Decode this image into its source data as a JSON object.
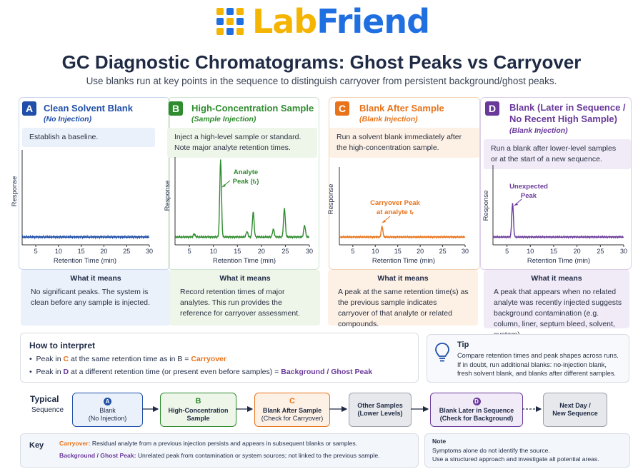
{
  "logo": {
    "lab": "Lab",
    "friend": "Friend"
  },
  "title": "GC Diagnostic Chromatograms: Ghost Peaks vs Carryover",
  "subtitle": "Use blanks run at key points in the sequence to distinguish carryover from persistent background/ghost peaks.",
  "colors": {
    "blue": "#1f4fa8",
    "green": "#2e8b2e",
    "orange": "#e8731a",
    "purple": "#6a3a9a",
    "navy": "#1f2a44"
  },
  "panels": [
    {
      "letter": "A",
      "title": "Clean Solvent Blank",
      "subtitle": "(No Injection)",
      "note": "Establish a baseline.",
      "annotation": "",
      "ylabel": "Response",
      "xlabel": "Retention Time (min)",
      "ticks": [
        "5",
        "10",
        "15",
        "20",
        "25",
        "30"
      ],
      "meaning_title": "What it means",
      "meaning": "No significant peaks. The system is clean before any sample is injected."
    },
    {
      "letter": "B",
      "title": "High-Concentration Sample",
      "subtitle": "(Sample Injection)",
      "note": "Inject a high-level sample or standard. Note major analyte retention times.",
      "annotation_line1": "Analyte",
      "annotation_line2": "Peak (tᵣ)",
      "ylabel": "Response",
      "xlabel": "Retention Time (min)",
      "ticks": [
        "5",
        "10",
        "15",
        "20",
        "25",
        "30"
      ],
      "meaning_title": "What it means",
      "meaning": "Record retention times of major analytes. This run provides the reference for carryover assessment."
    },
    {
      "letter": "C",
      "title": "Blank After Sample",
      "subtitle": "(Blank Injection)",
      "note": "Run a solvent blank immediately after the high-concentration sample.",
      "annotation_line1": "Carryover Peak",
      "annotation_line2": "at analyte tᵣ",
      "ylabel": "Response",
      "xlabel": "Retention Time (min)",
      "ticks": [
        "5",
        "10",
        "15",
        "20",
        "25",
        "30"
      ],
      "meaning_title": "What it means",
      "meaning": "A peak at the same retention time(s) as the previous sample indicates carryover of that analyte or related compounds."
    },
    {
      "letter": "D",
      "title_line1": "Blank (Later in Sequence /",
      "title_line2": "No Recent High Sample)",
      "subtitle": "(Blank Injection)",
      "note": "Run a blank after lower-level samples or at the start of a new sequence.",
      "annotation_line1": "Unexpected",
      "annotation_line2": "Peak",
      "ylabel": "Response",
      "xlabel": "Retention Time (min)",
      "ticks": [
        "5",
        "10",
        "15",
        "20",
        "25",
        "30"
      ],
      "meaning_title": "What it means",
      "meaning": "A peak that appears when no related analyte was recently injected suggests background contamination (e.g. column, liner, septum bleed, solvent, system)."
    }
  ],
  "chart_data": [
    {
      "type": "line",
      "panel": "A",
      "xlabel": "Retention Time (min)",
      "ylabel": "Response",
      "xlim": [
        2,
        30
      ],
      "x": [
        2,
        30
      ],
      "y": [
        0,
        0
      ],
      "peaks": []
    },
    {
      "type": "line",
      "panel": "B",
      "xlabel": "Retention Time (min)",
      "ylabel": "Response",
      "xlim": [
        2,
        30
      ],
      "peaks": [
        {
          "x": 6.0,
          "y": 0.04
        },
        {
          "x": 11.5,
          "y": 1.0
        },
        {
          "x": 17.0,
          "y": 0.07
        },
        {
          "x": 18.3,
          "y": 0.32
        },
        {
          "x": 22.5,
          "y": 0.1
        },
        {
          "x": 24.8,
          "y": 0.37
        },
        {
          "x": 29.0,
          "y": 0.15
        }
      ]
    },
    {
      "type": "line",
      "panel": "C",
      "xlabel": "Retention Time (min)",
      "ylabel": "Response",
      "xlim": [
        2,
        30
      ],
      "peaks": [
        {
          "x": 11.5,
          "y": 0.16
        }
      ]
    },
    {
      "type": "line",
      "panel": "D",
      "xlabel": "Retention Time (min)",
      "ylabel": "Response",
      "xlim": [
        2,
        30
      ],
      "peaks": [
        {
          "x": 6.2,
          "y": 0.48
        }
      ]
    }
  ],
  "interpret": {
    "title": "How to interpret",
    "b1_pre": "Peak in ",
    "b1_letter": "C",
    "b1_mid": " at the same retention time as in B  =  ",
    "b1_result": "Carryover",
    "b2_pre": "Peak in ",
    "b2_letter": "D",
    "b2_mid": " at a different retention time (or present even before samples)  =  ",
    "b2_result": "Background / Ghost Peak"
  },
  "tip": {
    "title": "Tip",
    "line1": "Compare retention times and peak shapes across runs.",
    "line2": "If in doubt, run additional blanks: no-injection blank,",
    "line3": "fresh solvent blank, and blanks after different samples.",
    "icon": "lightbulb-icon"
  },
  "sequence": {
    "label1": "Typical",
    "label2": "Sequence",
    "steps": [
      {
        "letter": "A",
        "line1": "Blank",
        "line2": "(No Injection)"
      },
      {
        "letter": "B",
        "line1": "High-Concentration",
        "line2": "Sample"
      },
      {
        "letter": "C",
        "line1": "Blank After Sample",
        "line2": "(Check for Carryover)"
      },
      {
        "letter": "",
        "line1": "Other Samples",
        "line2": "(Lower Levels)"
      },
      {
        "letter": "D",
        "line1": "Blank Later in Sequence",
        "line2": "(Check for Background)"
      },
      {
        "letter": "",
        "line1": "Next Day /",
        "line2": "New Sequence"
      }
    ]
  },
  "key": {
    "title": "Key",
    "carry_label": "Carryover:",
    "carry_text": "Residual analyte from a previous injection persists and appears in subsequent blanks or samples.",
    "ghost_label": "Background / Ghost Peak:",
    "ghost_text": "Unrelated peak from contamination or system sources; not linked to the previous sample."
  },
  "footnote": {
    "title": "Note",
    "line1": "Symptoms alone do not identify the source.",
    "line2": "Use a structured approach and investigate all potential areas."
  }
}
